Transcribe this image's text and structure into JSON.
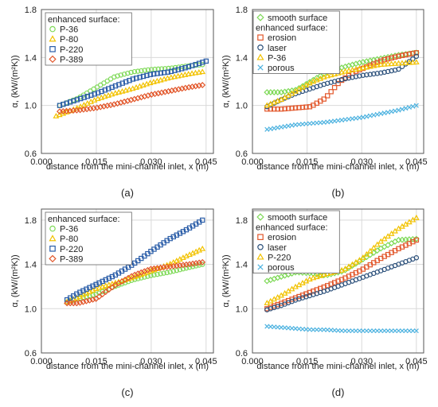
{
  "chart_data": [
    {
      "type": "line",
      "panel_label": "(a)",
      "xlabel": "distance from the mini-channel inlet, x (m)",
      "ylabel": "α, (kW/(m²K))",
      "xlim": [
        0.0,
        0.047
      ],
      "ylim": [
        0.6,
        1.8
      ],
      "xticks": [
        "0.000",
        "0.015",
        "0.030",
        "0.045"
      ],
      "xtick_values": [
        0.0,
        0.015,
        0.03,
        0.045
      ],
      "yticks": [
        "0.6",
        "1.0",
        "1.4",
        "1.8"
      ],
      "ytick_values": [
        0.6,
        1.0,
        1.4,
        1.8
      ],
      "legend_title": "enhanced surface:",
      "series": [
        {
          "name": "P-36",
          "marker": "circle",
          "color": "#7ed957",
          "x": [
            0.005,
            0.01,
            0.015,
            0.02,
            0.025,
            0.03,
            0.035,
            0.04,
            0.044
          ],
          "y": [
            1.0,
            1.06,
            1.15,
            1.24,
            1.28,
            1.3,
            1.31,
            1.33,
            1.34
          ]
        },
        {
          "name": "P-80",
          "marker": "triangle",
          "color": "#f2c200",
          "x": [
            0.004,
            0.01,
            0.015,
            0.02,
            0.025,
            0.03,
            0.035,
            0.04,
            0.044
          ],
          "y": [
            0.91,
            0.98,
            1.05,
            1.1,
            1.14,
            1.19,
            1.23,
            1.26,
            1.28
          ]
        },
        {
          "name": "P-220",
          "marker": "square",
          "color": "#2a5da8",
          "x": [
            0.005,
            0.01,
            0.015,
            0.02,
            0.025,
            0.03,
            0.035,
            0.04,
            0.045
          ],
          "y": [
            1.0,
            1.05,
            1.1,
            1.16,
            1.22,
            1.26,
            1.28,
            1.32,
            1.37
          ]
        },
        {
          "name": "P-389",
          "marker": "diamond",
          "color": "#e2572b",
          "x": [
            0.005,
            0.01,
            0.015,
            0.02,
            0.025,
            0.03,
            0.035,
            0.04,
            0.044
          ],
          "y": [
            0.95,
            0.96,
            0.98,
            1.01,
            1.05,
            1.09,
            1.12,
            1.15,
            1.17
          ]
        }
      ]
    },
    {
      "type": "line",
      "panel_label": "(b)",
      "xlabel": "distance from the mini-channel inlet, x (m)",
      "ylabel": "α, (kW/(m²K))",
      "xlim": [
        0.0,
        0.047
      ],
      "ylim": [
        0.6,
        1.8
      ],
      "xticks": [
        "0.000",
        "0.015",
        "0.030",
        "0.045"
      ],
      "xtick_values": [
        0.0,
        0.015,
        0.03,
        0.045
      ],
      "yticks": [
        "0.6",
        "1.0",
        "1.4",
        "1.8"
      ],
      "ytick_values": [
        0.6,
        1.0,
        1.4,
        1.8
      ],
      "legend_pre": "smooth surface",
      "legend_title": "enhanced surface:",
      "series": [
        {
          "name": "smooth surface",
          "marker": "diamond",
          "color": "#7ed957",
          "x": [
            0.004,
            0.008,
            0.012,
            0.016,
            0.02,
            0.025,
            0.03,
            0.035,
            0.04,
            0.045
          ],
          "y": [
            1.11,
            1.11,
            1.13,
            1.2,
            1.27,
            1.32,
            1.36,
            1.39,
            1.42,
            1.44
          ]
        },
        {
          "name": "erosion",
          "marker": "square",
          "color": "#e2572b",
          "x": [
            0.004,
            0.008,
            0.012,
            0.016,
            0.02,
            0.024,
            0.028,
            0.032,
            0.036,
            0.04,
            0.045
          ],
          "y": [
            0.97,
            0.97,
            0.98,
            0.99,
            1.06,
            1.2,
            1.28,
            1.33,
            1.38,
            1.41,
            1.44
          ]
        },
        {
          "name": "laser",
          "marker": "circle",
          "color": "#2a4f7a",
          "x": [
            0.004,
            0.008,
            0.012,
            0.016,
            0.02,
            0.025,
            0.03,
            0.035,
            0.04,
            0.045
          ],
          "y": [
            0.99,
            1.05,
            1.1,
            1.14,
            1.18,
            1.22,
            1.25,
            1.27,
            1.3,
            1.41
          ]
        },
        {
          "name": "P-36",
          "marker": "triangle",
          "color": "#f2c200",
          "x": [
            0.004,
            0.008,
            0.012,
            0.016,
            0.02,
            0.025,
            0.03,
            0.035,
            0.04,
            0.045
          ],
          "y": [
            1.0,
            1.05,
            1.12,
            1.19,
            1.24,
            1.28,
            1.31,
            1.34,
            1.35,
            1.36
          ]
        },
        {
          "name": "porous",
          "marker": "x",
          "color": "#4fb3e0",
          "x": [
            0.004,
            0.008,
            0.012,
            0.016,
            0.02,
            0.025,
            0.03,
            0.035,
            0.04,
            0.045
          ],
          "y": [
            0.8,
            0.82,
            0.84,
            0.85,
            0.86,
            0.88,
            0.9,
            0.93,
            0.96,
            1.0
          ]
        }
      ]
    },
    {
      "type": "line",
      "panel_label": "(c)",
      "xlabel": "distance from the mini-channel inlet, x (m)",
      "ylabel": "α, (kW/(m²K))",
      "xlim": [
        0.0,
        0.047
      ],
      "ylim": [
        0.6,
        1.9
      ],
      "xticks": [
        "0.000",
        "0.015",
        "0.030",
        "0.045"
      ],
      "xtick_values": [
        0.0,
        0.015,
        0.03,
        0.045
      ],
      "yticks": [
        "0.6",
        "1.0",
        "1.4",
        "1.8"
      ],
      "ytick_values": [
        0.6,
        1.0,
        1.4,
        1.8
      ],
      "legend_title": "enhanced surface:",
      "series": [
        {
          "name": "P-36",
          "marker": "circle",
          "color": "#7ed957",
          "x": [
            0.007,
            0.01,
            0.015,
            0.02,
            0.025,
            0.03,
            0.035,
            0.04,
            0.044
          ],
          "y": [
            1.06,
            1.09,
            1.13,
            1.2,
            1.26,
            1.3,
            1.33,
            1.37,
            1.4
          ]
        },
        {
          "name": "P-80",
          "marker": "triangle",
          "color": "#f2c200",
          "x": [
            0.007,
            0.01,
            0.015,
            0.02,
            0.025,
            0.03,
            0.035,
            0.04,
            0.044
          ],
          "y": [
            1.06,
            1.1,
            1.18,
            1.23,
            1.28,
            1.34,
            1.4,
            1.48,
            1.54
          ]
        },
        {
          "name": "P-220",
          "marker": "square",
          "color": "#2a5da8",
          "x": [
            0.007,
            0.01,
            0.015,
            0.02,
            0.025,
            0.03,
            0.035,
            0.04,
            0.044
          ],
          "y": [
            1.08,
            1.14,
            1.22,
            1.3,
            1.4,
            1.52,
            1.63,
            1.72,
            1.8
          ]
        },
        {
          "name": "P-389",
          "marker": "diamond",
          "color": "#e2572b",
          "x": [
            0.007,
            0.01,
            0.015,
            0.02,
            0.025,
            0.03,
            0.035,
            0.04,
            0.044
          ],
          "y": [
            1.05,
            1.05,
            1.09,
            1.21,
            1.3,
            1.36,
            1.38,
            1.4,
            1.42
          ]
        }
      ]
    },
    {
      "type": "line",
      "panel_label": "(d)",
      "xlabel": "distance from the mini-channel inlet, x (m)",
      "ylabel": "α, (kW/(m²K))",
      "xlim": [
        0.0,
        0.047
      ],
      "ylim": [
        0.6,
        1.9
      ],
      "xticks": [
        "0.000",
        "0.015",
        "0.030",
        "0.045"
      ],
      "xtick_values": [
        0.0,
        0.015,
        0.03,
        0.045
      ],
      "yticks": [
        "0.6",
        "1.0",
        "1.4",
        "1.8"
      ],
      "ytick_values": [
        0.6,
        1.0,
        1.4,
        1.8
      ],
      "legend_pre": "smooth surface",
      "legend_title": "enhanced surface:",
      "series": [
        {
          "name": "smooth surface",
          "marker": "diamond",
          "color": "#7ed957",
          "x": [
            0.004,
            0.008,
            0.012,
            0.016,
            0.02,
            0.025,
            0.03,
            0.035,
            0.04,
            0.045
          ],
          "y": [
            1.25,
            1.29,
            1.33,
            1.32,
            1.3,
            1.34,
            1.44,
            1.54,
            1.62,
            1.63
          ]
        },
        {
          "name": "erosion",
          "marker": "square",
          "color": "#e2572b",
          "x": [
            0.004,
            0.008,
            0.012,
            0.016,
            0.02,
            0.025,
            0.03,
            0.035,
            0.04,
            0.045
          ],
          "y": [
            1.0,
            1.05,
            1.1,
            1.15,
            1.2,
            1.27,
            1.35,
            1.45,
            1.54,
            1.62
          ]
        },
        {
          "name": "laser",
          "marker": "circle",
          "color": "#2a4f7a",
          "x": [
            0.004,
            0.008,
            0.012,
            0.016,
            0.02,
            0.025,
            0.03,
            0.035,
            0.04,
            0.045
          ],
          "y": [
            0.99,
            1.03,
            1.08,
            1.12,
            1.16,
            1.22,
            1.28,
            1.34,
            1.4,
            1.46
          ]
        },
        {
          "name": "P-220",
          "marker": "triangle",
          "color": "#f2c200",
          "x": [
            0.004,
            0.008,
            0.012,
            0.016,
            0.02,
            0.025,
            0.03,
            0.035,
            0.04,
            0.045
          ],
          "y": [
            1.05,
            1.12,
            1.2,
            1.27,
            1.31,
            1.35,
            1.45,
            1.6,
            1.72,
            1.82
          ]
        },
        {
          "name": "porous",
          "marker": "x",
          "color": "#4fb3e0",
          "x": [
            0.004,
            0.008,
            0.012,
            0.016,
            0.02,
            0.025,
            0.03,
            0.035,
            0.04,
            0.045
          ],
          "y": [
            0.84,
            0.83,
            0.82,
            0.81,
            0.81,
            0.8,
            0.8,
            0.8,
            0.8,
            0.8
          ]
        }
      ]
    }
  ]
}
